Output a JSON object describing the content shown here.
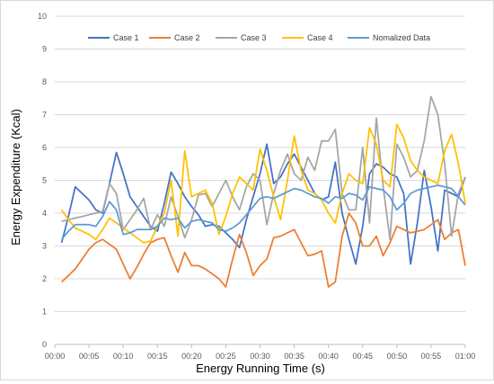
{
  "chart_data": {
    "type": "line",
    "title": "",
    "xlabel": "Energy Running Time (s)",
    "ylabel": "Energy Expenditure (Kcal)",
    "ylim": [
      0,
      10
    ],
    "yticks": [
      0,
      1,
      2,
      3,
      4,
      5,
      6,
      7,
      8,
      9,
      10
    ],
    "xlim": [
      "00:00",
      "01:00"
    ],
    "xticks": [
      "00:00",
      "00:05",
      "00:10",
      "00:15",
      "00:20",
      "00:25",
      "00:30",
      "00:35",
      "00:40",
      "00:45",
      "00:50",
      "00:55",
      "01:00"
    ],
    "grid": "horizontal",
    "legend_position": "top",
    "x": [
      "00:01",
      "00:02",
      "00:03",
      "00:04",
      "00:05",
      "00:06",
      "00:07",
      "00:08",
      "00:09",
      "00:10",
      "00:11",
      "00:12",
      "00:13",
      "00:14",
      "00:15",
      "00:16",
      "00:17",
      "00:18",
      "00:19",
      "00:20",
      "00:21",
      "00:22",
      "00:23",
      "00:24",
      "00:25",
      "00:26",
      "00:27",
      "00:28",
      "00:29",
      "00:30",
      "00:31",
      "00:32",
      "00:33",
      "00:34",
      "00:35",
      "00:36",
      "00:37",
      "00:38",
      "00:39",
      "00:40",
      "00:41",
      "00:42",
      "00:43",
      "00:44",
      "00:45",
      "00:46",
      "00:47",
      "00:48",
      "00:49",
      "00:50",
      "00:51",
      "00:52",
      "00:53",
      "00:54",
      "00:55",
      "00:56",
      "00:57",
      "00:58",
      "00:59",
      "01:00"
    ],
    "series": [
      {
        "name": "Case 1",
        "color": "#4472C4",
        "values": [
          3.1,
          3.9,
          4.8,
          4.6,
          4.4,
          4.1,
          4.0,
          4.9,
          5.85,
          5.2,
          4.5,
          4.2,
          3.9,
          3.6,
          3.45,
          4.3,
          5.25,
          4.9,
          4.5,
          4.2,
          3.95,
          3.6,
          3.65,
          3.6,
          3.4,
          3.2,
          2.95,
          3.8,
          4.5,
          5.2,
          6.1,
          4.9,
          5.1,
          5.5,
          5.8,
          5.4,
          5.0,
          4.6,
          4.4,
          4.5,
          5.55,
          4.0,
          3.2,
          2.45,
          3.6,
          5.2,
          5.5,
          5.4,
          5.2,
          5.1,
          4.6,
          2.45,
          3.7,
          5.3,
          4.2,
          2.85,
          4.7,
          4.6,
          4.5,
          5.1
        ]
      },
      {
        "name": "Case 2",
        "color": "#ED7D31",
        "values": [
          1.9,
          2.1,
          2.3,
          2.6,
          2.9,
          3.1,
          3.2,
          3.05,
          2.9,
          2.45,
          2.0,
          2.35,
          2.75,
          3.1,
          3.2,
          3.25,
          2.7,
          2.2,
          2.8,
          2.4,
          2.4,
          2.3,
          2.15,
          2.0,
          1.75,
          2.6,
          3.35,
          2.8,
          2.1,
          2.4,
          2.6,
          3.25,
          3.3,
          3.4,
          3.5,
          3.1,
          2.7,
          2.75,
          2.85,
          1.75,
          1.9,
          3.3,
          4.0,
          3.7,
          3.0,
          3.0,
          3.3,
          2.7,
          3.1,
          3.6,
          3.5,
          3.4,
          3.45,
          3.5,
          3.65,
          3.8,
          3.2,
          3.4,
          3.5,
          2.4
        ]
      },
      {
        "name": "Case 3",
        "color": "#A5A5A5",
        "values": [
          3.75,
          3.8,
          3.85,
          3.9,
          3.95,
          4.0,
          4.05,
          4.9,
          4.6,
          3.5,
          3.8,
          4.1,
          4.45,
          3.5,
          3.95,
          3.6,
          4.5,
          3.9,
          3.25,
          3.8,
          4.55,
          4.6,
          4.2,
          4.6,
          5.0,
          4.5,
          4.1,
          4.8,
          5.2,
          5.0,
          3.65,
          4.6,
          5.3,
          5.8,
          5.2,
          5.0,
          5.7,
          5.3,
          6.2,
          6.2,
          6.55,
          4.6,
          4.1,
          4.1,
          6.0,
          3.7,
          6.9,
          4.8,
          3.2,
          6.1,
          5.7,
          5.1,
          5.3,
          6.2,
          7.55,
          7.0,
          5.5,
          3.3,
          4.6,
          5.1
        ]
      },
      {
        "name": "Case 4",
        "color": "#FFC000",
        "values": [
          4.1,
          3.8,
          3.55,
          3.45,
          3.35,
          3.2,
          3.5,
          3.85,
          3.7,
          3.55,
          3.4,
          3.25,
          3.1,
          3.15,
          3.6,
          4.0,
          5.0,
          3.3,
          5.9,
          4.5,
          4.6,
          4.7,
          4.3,
          3.35,
          3.9,
          4.6,
          5.1,
          4.9,
          4.7,
          5.95,
          5.3,
          4.5,
          3.8,
          5.0,
          6.35,
          5.3,
          4.7,
          4.6,
          4.4,
          4.0,
          3.7,
          4.6,
          5.2,
          5.0,
          4.9,
          6.6,
          6.1,
          5.0,
          4.8,
          6.7,
          6.3,
          5.6,
          5.3,
          5.1,
          5.0,
          4.9,
          5.9,
          6.4,
          5.5,
          4.3
        ]
      },
      {
        "name": "Nomalized Data",
        "color": "#5B9BD5",
        "values": [
          3.2,
          3.45,
          3.65,
          3.65,
          3.65,
          3.6,
          3.9,
          4.35,
          4.1,
          3.35,
          3.4,
          3.5,
          3.5,
          3.5,
          3.6,
          3.85,
          3.8,
          3.85,
          3.55,
          3.75,
          3.8,
          3.75,
          3.7,
          3.5,
          3.45,
          3.55,
          3.7,
          3.95,
          4.2,
          4.45,
          4.5,
          4.45,
          4.55,
          4.65,
          4.75,
          4.7,
          4.6,
          4.5,
          4.45,
          4.3,
          4.5,
          4.45,
          4.6,
          4.55,
          4.4,
          4.8,
          4.75,
          4.7,
          4.5,
          4.1,
          4.3,
          4.6,
          4.7,
          4.75,
          4.8,
          4.85,
          4.8,
          4.75,
          4.5,
          4.25
        ]
      }
    ]
  }
}
